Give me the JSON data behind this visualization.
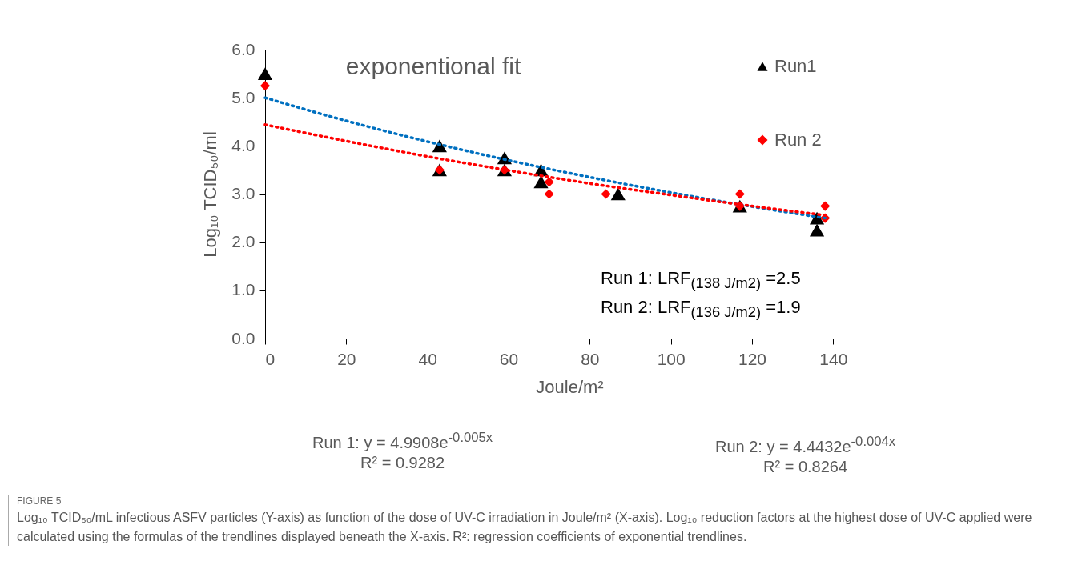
{
  "chart_data": {
    "type": "scatter",
    "title": "exponentional fit",
    "xlabel": "Joule/m²",
    "ylabel": "Log₁₀ TCID₅₀/ml",
    "xlim": [
      0,
      150
    ],
    "xticks": [
      0,
      20,
      40,
      60,
      80,
      100,
      120,
      140
    ],
    "ylim": [
      0,
      6
    ],
    "yticks": [
      {
        "value": 0,
        "label": "0.0"
      },
      {
        "value": 1,
        "label": "1.0"
      },
      {
        "value": 2,
        "label": "2.0"
      },
      {
        "value": 3,
        "label": "3.0"
      },
      {
        "value": 4,
        "label": "4.0"
      },
      {
        "value": 5,
        "label": "5.0"
      },
      {
        "value": 6,
        "label": "6.0"
      }
    ],
    "grid": false,
    "legend": "top right",
    "series": [
      {
        "name": "Run1",
        "marker": "triangle",
        "color": "#000000",
        "x": [
          0,
          43,
          43,
          59,
          59,
          68,
          68,
          87,
          117,
          136,
          136
        ],
        "values": [
          5.5,
          4.0,
          3.5,
          3.75,
          3.5,
          3.5,
          3.25,
          3.0,
          2.75,
          2.5,
          2.25
        ]
      },
      {
        "name": "Run 2",
        "marker": "diamond",
        "color": "#ff0000",
        "x": [
          0,
          43,
          59,
          70,
          70,
          84,
          117,
          117,
          138,
          138
        ],
        "values": [
          5.25,
          3.5,
          3.5,
          3.25,
          3.0,
          3.0,
          3.0,
          2.75,
          2.75,
          2.5
        ]
      },
      {
        "type": "line",
        "line_style": "dotted",
        "marker": "none",
        "color": "#0070c0",
        "x": [
          0,
          20,
          40,
          60,
          80,
          100,
          120,
          138
        ],
        "values": [
          5.0,
          4.52,
          4.09,
          3.7,
          3.35,
          3.03,
          2.74,
          2.5
        ]
      },
      {
        "type": "line",
        "line_style": "dotted",
        "marker": "none",
        "color": "#ff0000",
        "x": [
          0,
          20,
          40,
          60,
          80,
          100,
          120,
          138
        ],
        "values": [
          4.44,
          4.1,
          3.78,
          3.49,
          3.22,
          2.98,
          2.75,
          2.56
        ]
      }
    ],
    "annotations": [
      "Run 1: LRF$_{(138 J/m2)}$ =2.5",
      "Run 2: LRF$_{(136 J/m2)}$ =1.9",
      "Run 1: y = 4.9908e$^{-0.005x}$",
      "R² = 0.9282",
      "Run 2: y = 4.4432e$^{-0.004x}$",
      "R² = 0.8264",
      "FIGURE 5",
      "Log₁₀ TCID₅₀/mL infectious ASFV particles (Y-axis) as function of the dose of UV-C irradiation in Joule/m² (X-axis). Log₁₀ reduction factors at the highest dose of UV-C applied were calculated using the formulas of the trendlines displayed beneath the X-axis. R²: regression coefficients of exponential trendlines."
    ]
  }
}
